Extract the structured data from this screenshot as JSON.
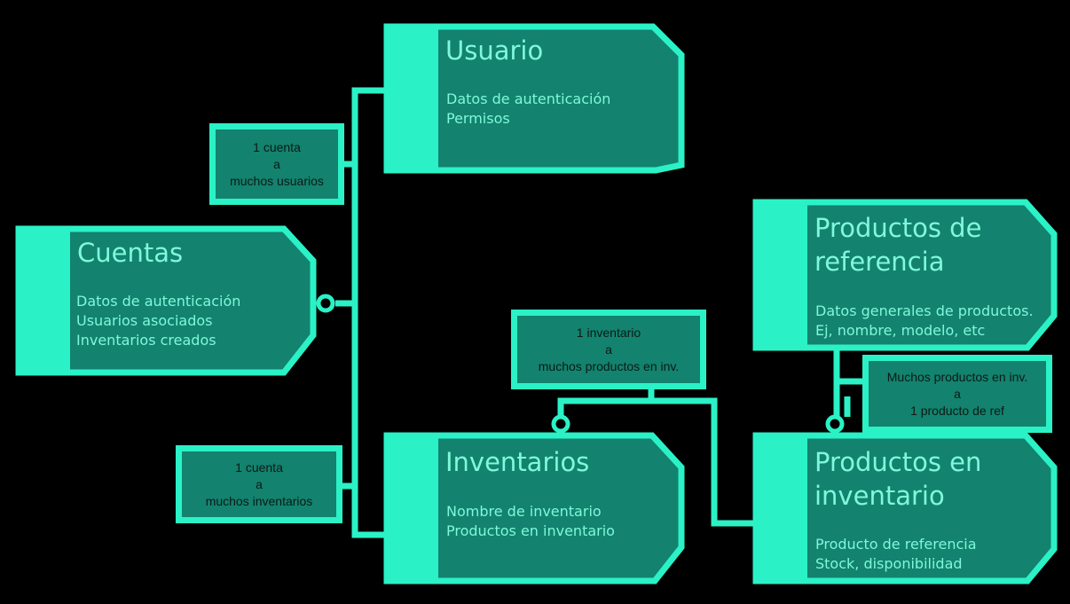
{
  "colors": {
    "background": "#000000",
    "frame": "#2af2c6",
    "fill": "#13826e",
    "entity_text": "#7ff8dc",
    "relation_text": "#0b1a17"
  },
  "entities": {
    "usuario": {
      "title": "Usuario",
      "lines": [
        "Datos de autenticación",
        "Permisos"
      ]
    },
    "cuentas": {
      "title": "Cuentas",
      "lines": [
        "Datos de autenticación",
        "Usuarios asociados",
        "Inventarios creados"
      ]
    },
    "inventarios": {
      "title": "Inventarios",
      "lines": [
        "Nombre de inventario",
        "Productos en inventario"
      ]
    },
    "productos_referencia": {
      "title": "Productos de\nreferencia",
      "lines": [
        "Datos generales de productos.",
        "Ej, nombre, modelo, etc"
      ]
    },
    "productos_inventario": {
      "title": "Productos en\ninventario",
      "lines": [
        "Producto de referencia",
        "Stock, disponibilidad"
      ]
    }
  },
  "relations": {
    "cuenta_usuarios": [
      "1 cuenta",
      "a",
      "muchos usuarios"
    ],
    "cuenta_inventarios": [
      "1 cuenta",
      "a",
      "muchos inventarios"
    ],
    "inventario_productos": [
      "1 inventario",
      "a",
      "muchos productos en inv."
    ],
    "productos_ref": [
      "Muchos productos en inv.",
      "a",
      "1 producto de ref"
    ]
  }
}
